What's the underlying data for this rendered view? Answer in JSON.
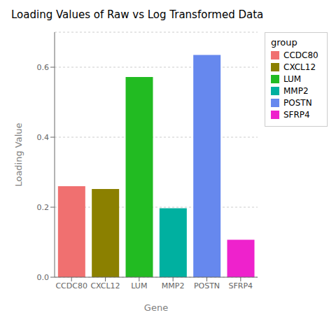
{
  "chart_data": {
    "type": "bar",
    "title": "Loading Values of Raw vs Log Transformed Data",
    "xlabel": "Gene",
    "ylabel": "Loading Value",
    "categories": [
      "CCDC80",
      "CXCL12",
      "LUM",
      "MMP2",
      "POSTN",
      "SFRP4"
    ],
    "values": [
      0.26,
      0.252,
      0.572,
      0.197,
      0.635,
      0.107
    ],
    "colors": [
      "#F07070",
      "#8B8000",
      "#22BB22",
      "#00B0A0",
      "#6688EE",
      "#EE22CC"
    ],
    "ylim": [
      0,
      0.7
    ],
    "yticks": [
      {
        "value": 0,
        "label": "0.0"
      },
      0.2,
      0.4,
      0.6
    ],
    "grid": true,
    "legend": "right",
    "legend_title": "group"
  }
}
